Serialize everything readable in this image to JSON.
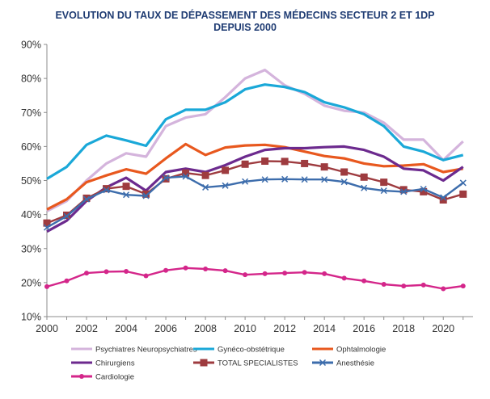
{
  "chart_data": {
    "type": "line",
    "title": "EVOLUTION DU TAUX DE DÉPASSEMENT DES MÉDECINS SECTEUR 2 ET 1DP",
    "subtitle": "DEPUIS 2000",
    "xlabel": "",
    "ylabel": "",
    "x": [
      2000,
      2001,
      2002,
      2003,
      2004,
      2005,
      2006,
      2007,
      2008,
      2009,
      2010,
      2011,
      2012,
      2013,
      2014,
      2015,
      2016,
      2017,
      2018,
      2019,
      2020,
      2021
    ],
    "xticks": [
      2000,
      2002,
      2004,
      2006,
      2008,
      2010,
      2012,
      2014,
      2016,
      2018,
      2020
    ],
    "xtick_labels": [
      "2000",
      "2002",
      "2004",
      "2006",
      "2008",
      "2010",
      "2012",
      "2014",
      "2016",
      "2018",
      "2020"
    ],
    "xlim": [
      2000,
      2021.5
    ],
    "ylim": [
      10,
      90
    ],
    "yticks": [
      10,
      20,
      30,
      40,
      50,
      60,
      70,
      80,
      90
    ],
    "ytick_labels": [
      "10%",
      "20%",
      "30%",
      "40%",
      "50%",
      "60%",
      "70%",
      "80%",
      "90%"
    ],
    "grid": false,
    "legend_position": "bottom",
    "series": [
      {
        "name": "Psychiatres Neuropsychiatres",
        "color": "#d4b4dc",
        "marker": "none",
        "values": [
          41,
          44,
          50,
          55,
          58,
          57,
          66,
          68.5,
          69.5,
          74.5,
          80,
          82.5,
          78,
          75.5,
          72,
          70.5,
          70,
          67,
          62,
          62,
          56,
          61.5
        ]
      },
      {
        "name": "Gynéco-obstétrique",
        "color": "#1aa8d8",
        "marker": "none",
        "values": [
          50.5,
          54,
          60.5,
          63.2,
          61.8,
          60.2,
          68,
          70.8,
          70.8,
          73,
          76.8,
          78.2,
          77.5,
          76,
          73,
          71.5,
          69.5,
          66,
          60,
          58.5,
          56,
          57.5
        ]
      },
      {
        "name": "Ophtalmologie",
        "color": "#e8581e",
        "marker": "none",
        "values": [
          41.5,
          44.5,
          49.5,
          51.5,
          53.3,
          52,
          56.5,
          60.7,
          57.5,
          59.7,
          60.3,
          60.5,
          59.8,
          58.5,
          57.2,
          56.5,
          55,
          54.2,
          54.4,
          54.8,
          52.5,
          53.5
        ]
      },
      {
        "name": "Chirurgiens",
        "color": "#6c2a8e",
        "marker": "none",
        "values": [
          35,
          38.2,
          44,
          48,
          50.8,
          47,
          52.5,
          53.5,
          52.5,
          54.5,
          57,
          59,
          59.5,
          59.5,
          59.8,
          60,
          59,
          57,
          53.5,
          53,
          50,
          54
        ]
      },
      {
        "name": "TOTAL SPECIALISTES",
        "color": "#9e3b3f",
        "marker": "square",
        "values": [
          37.5,
          39.8,
          44.8,
          47.6,
          48.3,
          46,
          50.5,
          52.2,
          51.5,
          53,
          54.8,
          55.7,
          55.6,
          55,
          54,
          52.5,
          51,
          49.5,
          47.3,
          46.7,
          44.3,
          46
        ]
      },
      {
        "name": "Anesthésie",
        "color": "#3d6dac",
        "marker": "x",
        "values": [
          36.2,
          39.5,
          44.5,
          47.2,
          45.8,
          45.5,
          50.8,
          51.2,
          48,
          48.5,
          49.7,
          50.3,
          50.4,
          50.3,
          50.3,
          49.6,
          47.8,
          47,
          46.7,
          47.5,
          45,
          49.3
        ]
      },
      {
        "name": "Cardiologie",
        "color": "#d4268a",
        "marker": "circle",
        "values": [
          18.8,
          20.5,
          22.8,
          23.2,
          23.3,
          22,
          23.6,
          24.3,
          24,
          23.5,
          22.3,
          22.6,
          22.8,
          23,
          22.6,
          21.3,
          20.5,
          19.5,
          19,
          19.3,
          18.2,
          19
        ]
      }
    ]
  }
}
